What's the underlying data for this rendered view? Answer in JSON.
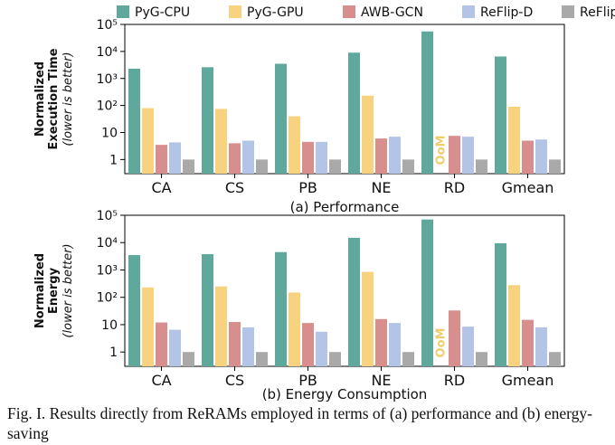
{
  "caption": "Fig. I.  Results directly from ReRAMs employed in terms of (a) performance and (b) energy-saving",
  "colors": {
    "PyG-CPU": "#5fa89c",
    "PyG-GPU": "#f8d37f",
    "AWB-GCN": "#d98e8e",
    "ReFlip-D": "#b3c4e6",
    "ReFlip": "#a9a9a9",
    "oom_text": "#f0cd6a"
  },
  "legend": [
    "PyG-CPU",
    "PyG-GPU",
    "AWB-GCN",
    "ReFlip-D",
    "ReFlip"
  ],
  "chart_data": [
    {
      "type": "bar",
      "scale": "log",
      "ylim": [
        0.3,
        100000
      ],
      "yticks": [
        "1",
        "10",
        "10²",
        "10³",
        "10⁴",
        "10⁵"
      ],
      "ylabel": "Normalized Execution Time",
      "ylabel_note": "(lower is better)",
      "xlabel": "(a) Performance",
      "categories": [
        "CA",
        "CS",
        "PB",
        "NE",
        "RD",
        "Gmean"
      ],
      "series": [
        {
          "name": "PyG-CPU",
          "values": [
            2300,
            2600,
            3500,
            9000,
            55000,
            6500
          ]
        },
        {
          "name": "PyG-GPU",
          "values": [
            80,
            75,
            40,
            230,
            null,
            90
          ]
        },
        {
          "name": "AWB-GCN",
          "values": [
            3.5,
            4,
            4.5,
            6,
            7.5,
            5
          ]
        },
        {
          "name": "ReFlip-D",
          "values": [
            4.3,
            5,
            4.5,
            7,
            7,
            5.5
          ]
        },
        {
          "name": "ReFlip",
          "values": [
            1,
            1,
            1,
            1,
            1,
            1
          ]
        }
      ],
      "annotations": [
        {
          "text": "OoM",
          "category": "RD",
          "series": "PyG-GPU"
        }
      ]
    },
    {
      "type": "bar",
      "scale": "log",
      "ylim": [
        0.3,
        100000
      ],
      "yticks": [
        "1",
        "10",
        "10²",
        "10³",
        "10⁴",
        "10⁵"
      ],
      "ylabel": "Normalized Energy",
      "ylabel_note": "(lower is better)",
      "xlabel": "(b)  Energy Consumption",
      "categories": [
        "CA",
        "CS",
        "PB",
        "NE",
        "RD",
        "Gmean"
      ],
      "series": [
        {
          "name": "PyG-CPU",
          "values": [
            3500,
            3800,
            4500,
            15000,
            70000,
            9500
          ]
        },
        {
          "name": "PyG-GPU",
          "values": [
            230,
            250,
            150,
            850,
            null,
            280
          ]
        },
        {
          "name": "AWB-GCN",
          "values": [
            12,
            12.5,
            11.5,
            16,
            33,
            15
          ]
        },
        {
          "name": "ReFlip-D",
          "values": [
            6.5,
            8,
            5.5,
            11.5,
            8.5,
            8
          ]
        },
        {
          "name": "ReFlip",
          "values": [
            1,
            1,
            1,
            1,
            1,
            1
          ]
        }
      ],
      "annotations": [
        {
          "text": "OoM",
          "category": "RD",
          "series": "PyG-GPU"
        }
      ]
    }
  ]
}
